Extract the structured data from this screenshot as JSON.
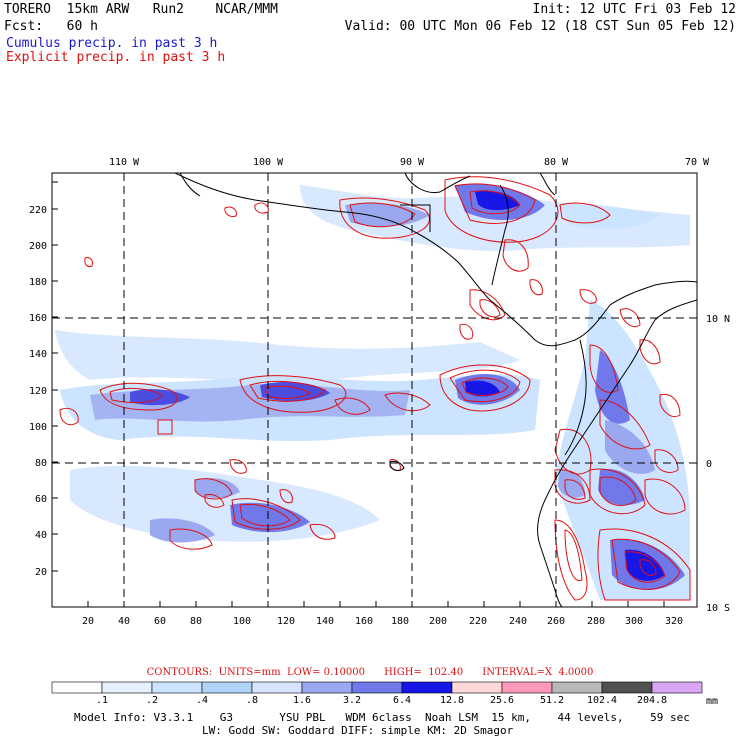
{
  "header": {
    "model": "TORERO  15km ARW   Run2    NCAR/MMM",
    "init": "Init: 12 UTC Fri 03 Feb 12",
    "fcst": "Fcst:   60 h",
    "valid": "Valid: 00 UTC Mon 06 Feb 12 (18 CST Sun 05 Feb 12)",
    "cumulus": "Cumulus precip. in past 3 h",
    "explicit": "Explicit precip. in past 3 h"
  },
  "axes": {
    "bottom_ticks": [
      "20",
      "40",
      "60",
      "80",
      "100",
      "120",
      "140",
      "160",
      "180",
      "200",
      "220",
      "240",
      "260",
      "280",
      "300",
      "320"
    ],
    "left_ticks": [
      "20",
      "40",
      "60",
      "80",
      "100",
      "120",
      "140",
      "160",
      "180",
      "200",
      "220"
    ],
    "top_lon": [
      "110 W",
      "100 W",
      "90 W",
      "80 W",
      "70 W"
    ],
    "right_lat": [
      "10 N",
      "0",
      "10 S"
    ]
  },
  "colors": {
    "coast": "#000000",
    "explicit_contour": "#e01010",
    "cumulus_text": "#1a1acc",
    "explicit_text": "#e01010",
    "scale": [
      "#ffffff",
      "#e6f0ff",
      "#cce4ff",
      "#b0d4f8",
      "#9aa8f0",
      "#7078ea",
      "#4c4ce0",
      "#1616e6",
      "#ffd8d8",
      "#ff99bb",
      "#b8b8b8",
      "#505050",
      "#d9a6f5"
    ]
  },
  "colorbar": {
    "labels": [
      ".1",
      ".2",
      ".4",
      ".8",
      "1.6",
      "3.2",
      "6.4",
      "12.8",
      "25.6",
      "51.2",
      "102.4",
      "204.8"
    ],
    "unit": "mm"
  },
  "contours_text": "CONTOURS:  UNITS=mm  LOW= 0.10000      HIGH=  102.40      INTERVAL=X  4.0000",
  "footer": {
    "line1": "Model Info: V3.3.1    G3       YSU PBL   WDM 6class  Noah LSM  15 km,    44 levels,    59 sec",
    "line2": "LW: Godd SW: Goddard DIFF: simple KM: 2D Smagor"
  }
}
